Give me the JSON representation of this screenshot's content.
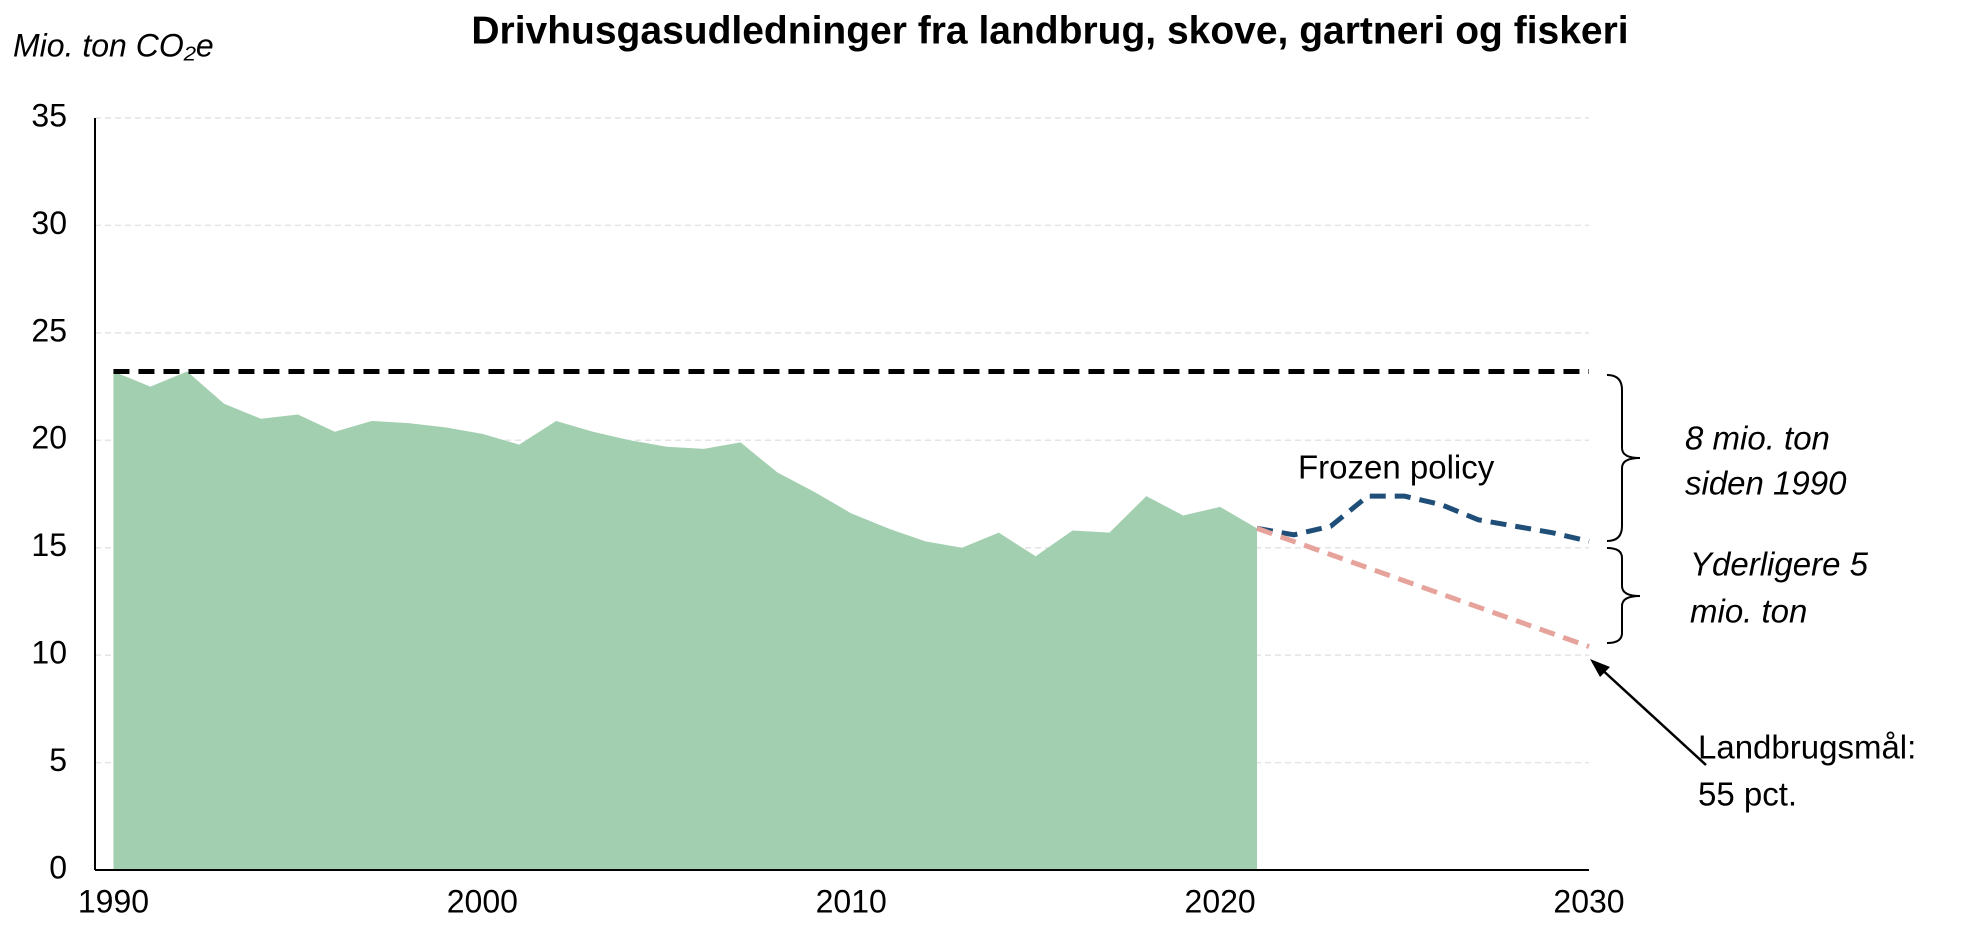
{
  "chart_data": {
    "type": "area",
    "title": "Drivhusgasudledninger fra landbrug, skove, gartneri og fiskeri",
    "y_label": "Mio. ton CO₂e",
    "xlim": [
      1989.5,
      2030
    ],
    "xticks": [
      1990,
      2000,
      2010,
      2020,
      2030
    ],
    "ylim": [
      0,
      35
    ],
    "yticks": [
      0,
      5,
      10,
      15,
      20,
      25,
      30,
      35
    ],
    "grid": true,
    "area": {
      "color": "#a2cfb0",
      "x": [
        1990,
        1991,
        1992,
        1993,
        1994,
        1995,
        1996,
        1997,
        1998,
        1999,
        2000,
        2001,
        2002,
        2003,
        2004,
        2005,
        2006,
        2007,
        2008,
        2009,
        2010,
        2011,
        2012,
        2013,
        2014,
        2015,
        2016,
        2017,
        2018,
        2019,
        2020,
        2021
      ],
      "values": [
        23.2,
        22.5,
        23.2,
        21.7,
        21.0,
        21.2,
        20.4,
        20.9,
        20.8,
        20.6,
        20.3,
        19.8,
        20.9,
        20.4,
        20.0,
        19.7,
        19.6,
        19.9,
        18.5,
        17.6,
        16.6,
        15.9,
        15.3,
        15.0,
        15.7,
        14.6,
        15.8,
        15.7,
        17.4,
        16.5,
        16.9,
        15.9
      ]
    },
    "lines": [
      {
        "color": "#000000",
        "x": [
          1990,
          2030
        ],
        "values": [
          23.2,
          23.2
        ]
      },
      {
        "color": "#1f4e79",
        "x": [
          2021,
          2022,
          2023,
          2024,
          2025,
          2026,
          2027,
          2028,
          2029,
          2030
        ],
        "values": [
          15.9,
          15.6,
          16.0,
          17.4,
          17.4,
          17.0,
          16.3,
          16.0,
          15.7,
          15.3
        ]
      },
      {
        "color": "#e6a39c",
        "x": [
          2021,
          2030
        ],
        "values": [
          15.9,
          10.4
        ]
      }
    ],
    "annotations": {
      "frozen_policy": "Frozen policy",
      "since_1990": [
        "8 mio. ton",
        "siden 1990"
      ],
      "additional": [
        "Yderligere 5",
        "mio. ton"
      ],
      "target": [
        "Landbrugsmål:",
        "55 pct."
      ]
    }
  }
}
